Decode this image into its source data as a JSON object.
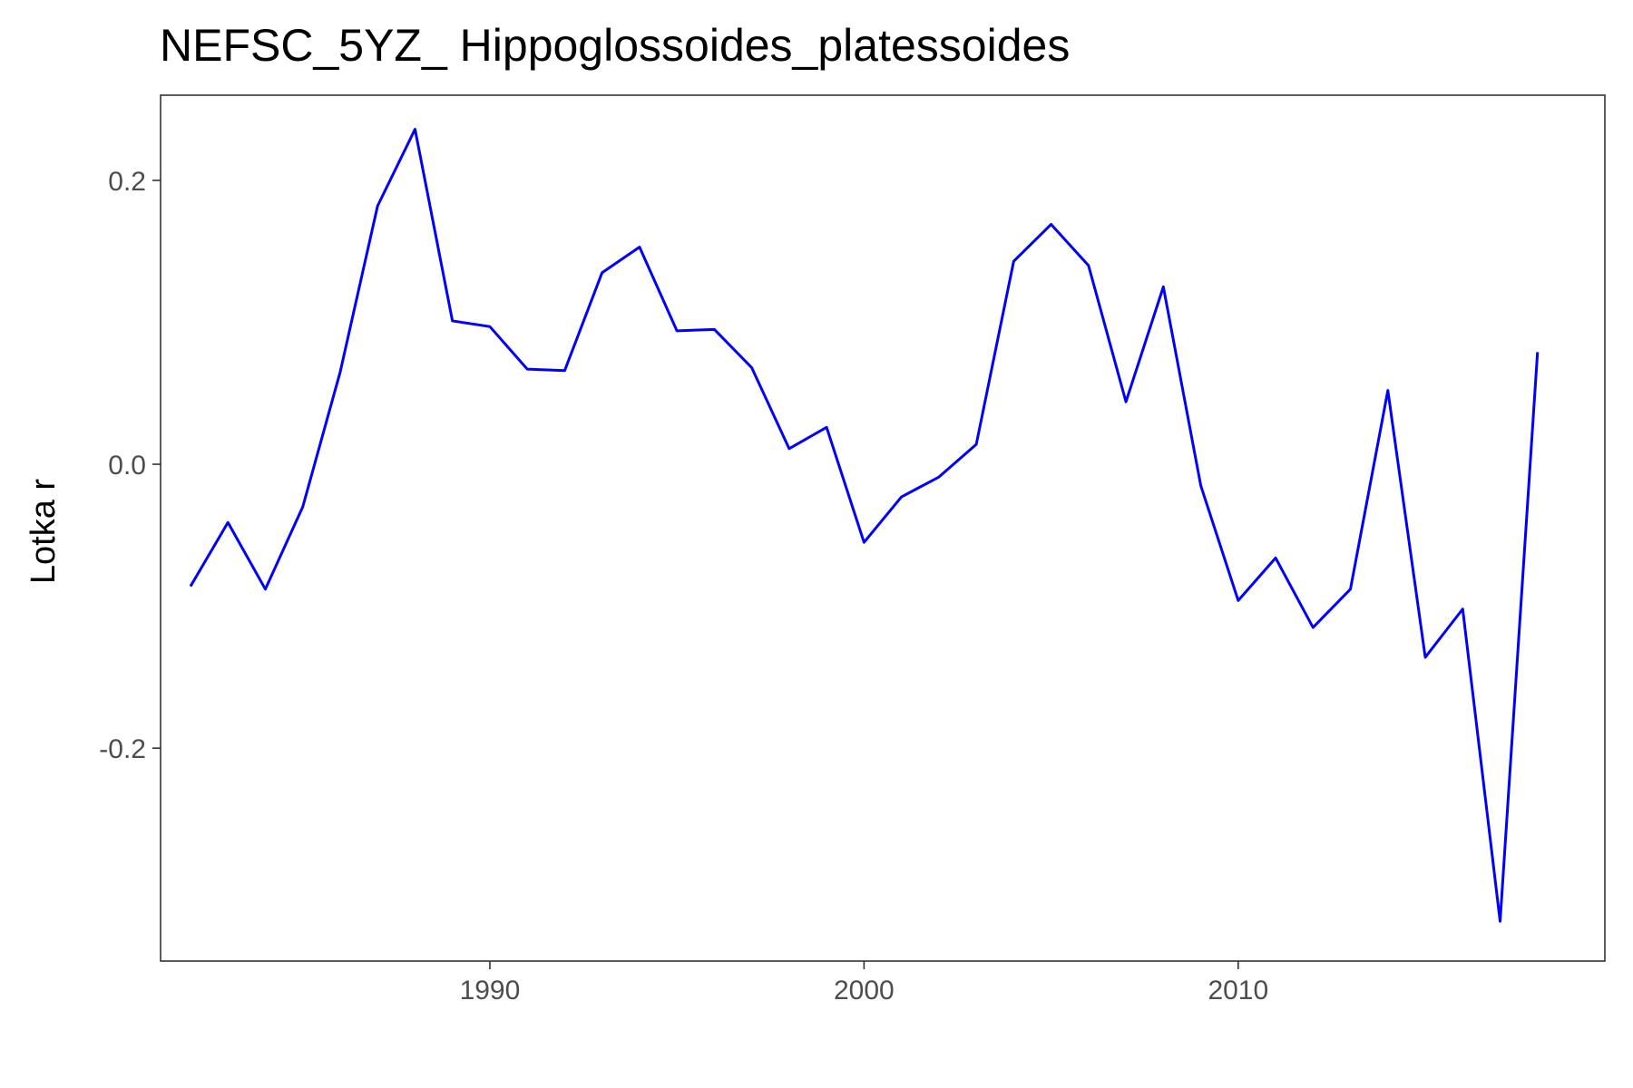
{
  "chart_data": {
    "type": "line",
    "title": "NEFSC_5YZ_ Hippoglossoides_platessoides",
    "xlabel": "",
    "ylabel": "Lotka r",
    "xlim": [
      1981.2,
      2019.8
    ],
    "ylim": [
      -0.35,
      0.26
    ],
    "x_ticks": [
      1990,
      2000,
      2010
    ],
    "x_tick_labels": [
      "1990",
      "2000",
      "2010"
    ],
    "y_ticks": [
      0.2,
      0.0,
      -0.2
    ],
    "y_tick_labels": [
      "0.2",
      "0.0",
      "-0.2"
    ],
    "grid": false,
    "series": [
      {
        "color": "#0000ff",
        "x": [
          1982,
          1983,
          1984,
          1985,
          1986,
          1987,
          1988,
          1989,
          1990,
          1991,
          1992,
          1993,
          1994,
          1995,
          1996,
          1997,
          1998,
          1999,
          2000,
          2001,
          2002,
          2003,
          2004,
          2005,
          2006,
          2007,
          2008,
          2009,
          2010,
          2011,
          2012,
          2013,
          2014,
          2015,
          2016,
          2017,
          2018
        ],
        "y": [
          -0.086,
          -0.041,
          -0.088,
          -0.03,
          0.065,
          0.182,
          0.236,
          0.101,
          0.097,
          0.067,
          0.066,
          0.135,
          0.153,
          0.094,
          0.095,
          0.068,
          0.011,
          0.026,
          -0.055,
          -0.023,
          -0.009,
          0.014,
          0.143,
          0.169,
          0.14,
          0.044,
          0.125,
          -0.015,
          -0.096,
          -0.066,
          -0.115,
          -0.088,
          0.052,
          -0.136,
          -0.102,
          -0.322,
          0.079
        ]
      }
    ]
  }
}
